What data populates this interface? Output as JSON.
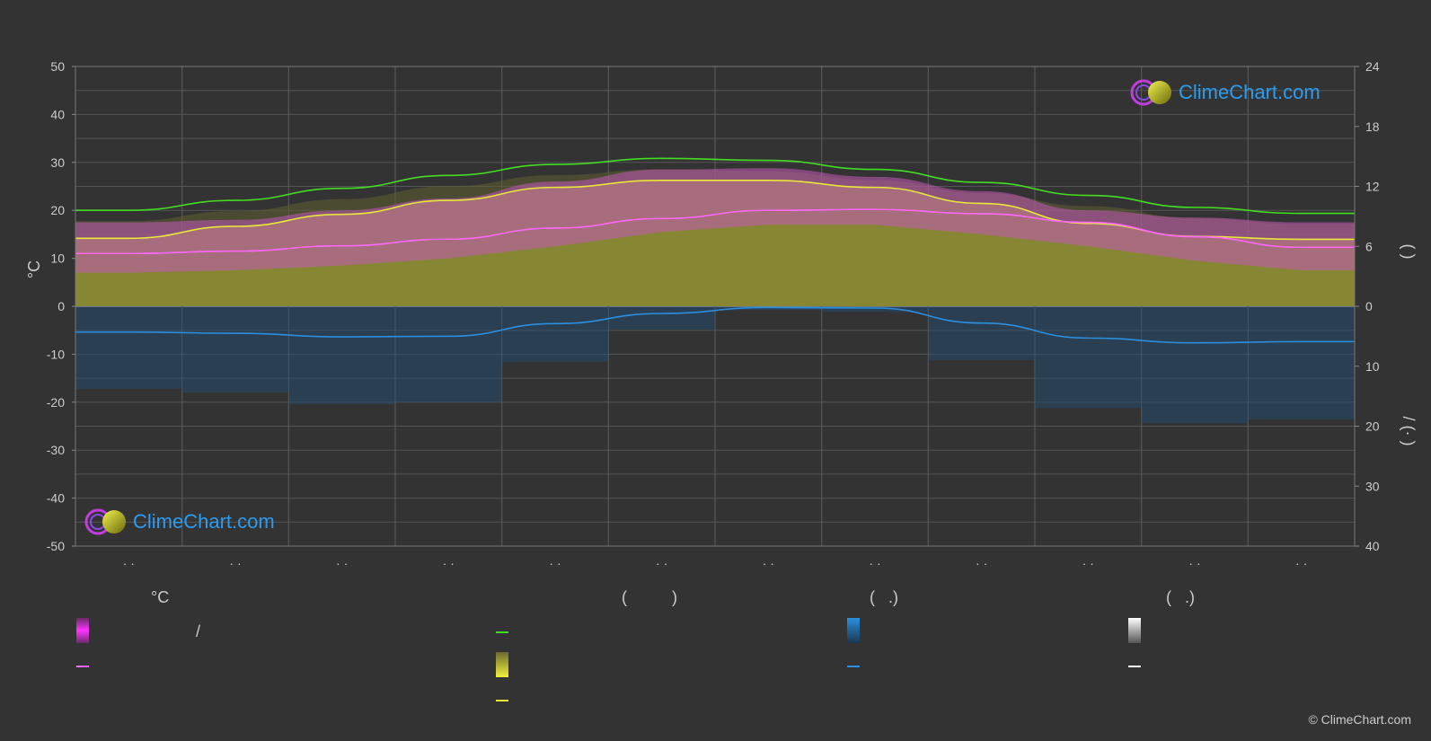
{
  "chart_data": {
    "type": "area",
    "y_left": {
      "label": "°C",
      "ylim": [
        -50,
        50
      ],
      "ticks": [
        "50",
        "40",
        "30",
        "20",
        "10",
        "0",
        "-10",
        "-20",
        "-30",
        "-40",
        "-50"
      ]
    },
    "y_right_top": {
      "label": "(  )",
      "ylim": [
        0,
        24
      ],
      "ticks": [
        "24",
        "18",
        "12",
        "6",
        "0"
      ]
    },
    "y_right_bottom": {
      "label": "/  (·  )",
      "ylim": [
        0,
        40
      ],
      "ticks": [
        "10",
        "20",
        "30",
        "40"
      ]
    },
    "x_tick_labels": [
      "· ·",
      "· ·",
      "· ·",
      "· ·",
      "· ·",
      "· ·",
      "· ·",
      "· ·",
      "· ·",
      "· ·",
      "· ·",
      "· ·"
    ],
    "months": [
      1,
      2,
      3,
      4,
      5,
      6,
      7,
      8,
      9,
      10,
      11,
      12
    ],
    "series": [
      {
        "name": "",
        "key": "daylight_hours",
        "color": "#44dd22",
        "values": [
          9.6,
          10.6,
          11.8,
          13.1,
          14.2,
          14.8,
          14.6,
          13.7,
          12.4,
          11.1,
          9.9,
          9.3
        ]
      },
      {
        "name": "",
        "key": "sunshine_hours",
        "color": "#e8e83a",
        "values": [
          6.8,
          8.0,
          9.2,
          10.6,
          11.9,
          12.6,
          12.6,
          11.9,
          10.3,
          8.3,
          7.0,
          6.7
        ]
      },
      {
        "name": "",
        "key": "mean_temperature_c",
        "color": "#ff66ff",
        "values": [
          11.0,
          11.5,
          12.6,
          14.0,
          16.3,
          18.3,
          20.0,
          20.2,
          19.3,
          17.5,
          14.5,
          12.3
        ]
      },
      {
        "name": "",
        "key": "precipitation_mm",
        "color": "#2a8fe0",
        "values": [
          4.3,
          4.5,
          5.1,
          5.0,
          2.9,
          1.2,
          0.2,
          0.3,
          2.8,
          5.3,
          6.1,
          5.9
        ]
      }
    ],
    "band_max_temperature_c": [
      17.5,
      18.0,
      20.0,
      22.5,
      26.0,
      28.5,
      28.8,
      27.0,
      24.0,
      20.0,
      18.5,
      17.5
    ],
    "band_min_temperature_c": [
      7.0,
      7.5,
      8.5,
      10.0,
      12.5,
      15.5,
      17.0,
      17.0,
      15.0,
      12.5,
      9.5,
      7.5
    ],
    "grid": true
  },
  "legend": {
    "col1_title": "°C",
    "col1_row1_text": "/",
    "col2_title": "(          )",
    "col3_title": "(   .)",
    "col4_title": "(   .)"
  },
  "logo_text": "ClimeChart.com",
  "copyright": "© ClimeChart.com",
  "colors": {
    "background": "#333333",
    "temperature": "#ff66ff",
    "daylight": "#44dd22",
    "sunshine": "#e8e83a",
    "rain": "#2a8fe0",
    "snow": "#ffffff"
  }
}
